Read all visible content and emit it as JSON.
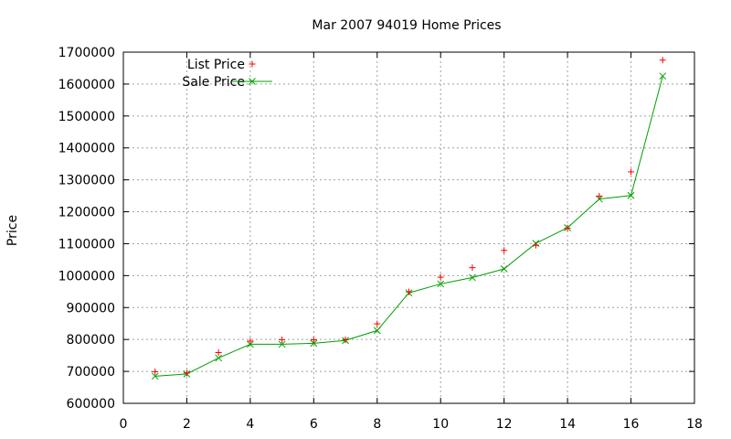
{
  "chart_data": {
    "type": "scatter",
    "title": "Mar 2007 94019 Home Prices",
    "xlabel": "",
    "ylabel": "Price",
    "xlim": [
      0,
      18
    ],
    "ylim": [
      600000,
      1700000
    ],
    "xticks": [
      0,
      2,
      4,
      6,
      8,
      10,
      12,
      14,
      16,
      18
    ],
    "yticks": [
      600000,
      700000,
      800000,
      900000,
      1000000,
      1100000,
      1200000,
      1300000,
      1400000,
      1500000,
      1600000,
      1700000
    ],
    "grid": true,
    "legend_position": "top-left",
    "series": [
      {
        "name": "List Price",
        "style": "points",
        "marker": "plus",
        "color": "#ff0000",
        "x": [
          1,
          2,
          3,
          4,
          5,
          6,
          7,
          8,
          9,
          10,
          11,
          12,
          13,
          14,
          15,
          16,
          17
        ],
        "y": [
          699000,
          695000,
          759000,
          795000,
          799000,
          799000,
          799000,
          849000,
          949000,
          995000,
          1025000,
          1079000,
          1095000,
          1149000,
          1249000,
          1325000,
          1675000
        ]
      },
      {
        "name": "Sale Price",
        "style": "linespoints",
        "marker": "cross",
        "color": "#00a000",
        "x": [
          1,
          2,
          3,
          4,
          5,
          6,
          7,
          8,
          9,
          10,
          11,
          12,
          13,
          14,
          15,
          16,
          17
        ],
        "y": [
          685000,
          692000,
          742000,
          785000,
          785000,
          788000,
          797000,
          828000,
          946000,
          974000,
          994000,
          1021000,
          1101000,
          1150000,
          1240000,
          1251000,
          1625000
        ]
      }
    ]
  }
}
